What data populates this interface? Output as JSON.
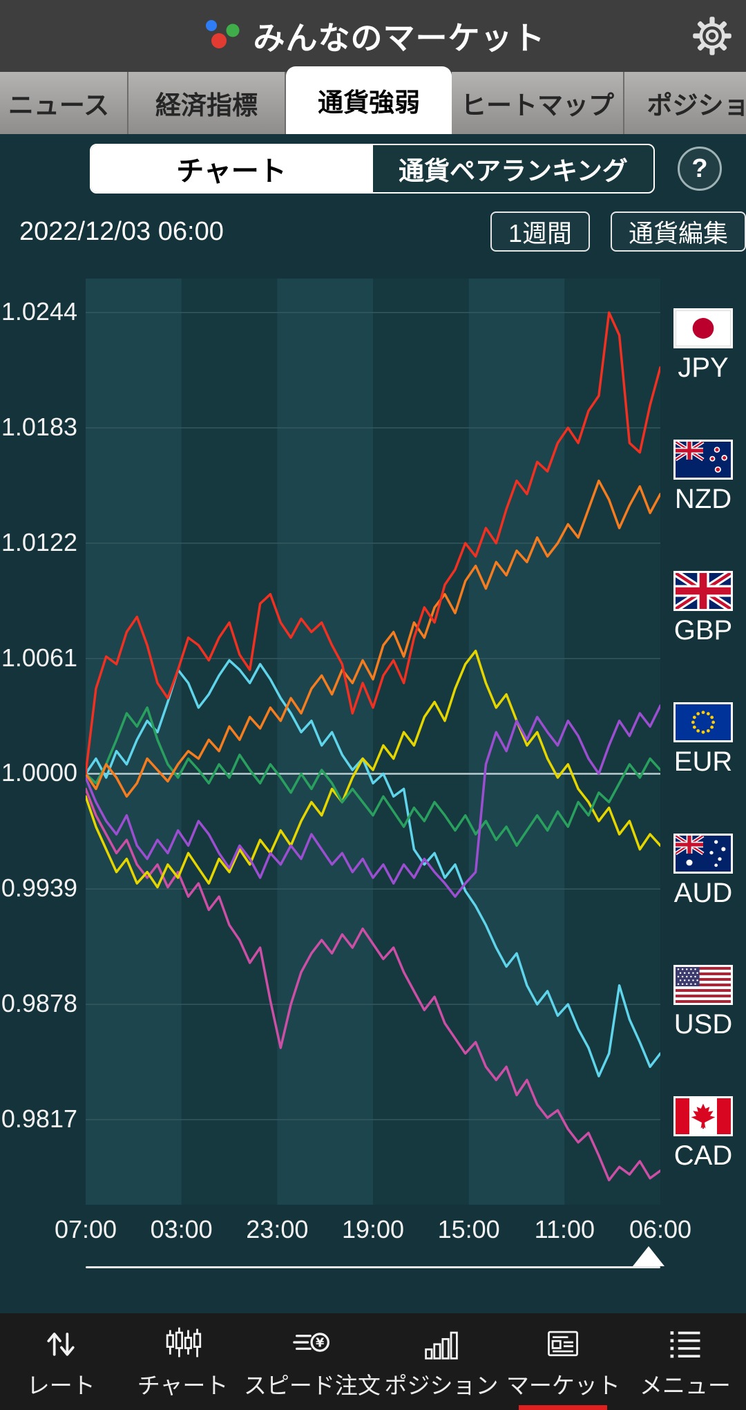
{
  "header": {
    "title": "みんなのマーケット"
  },
  "tabs": [
    {
      "id": "news",
      "label": "ニュース",
      "active": false
    },
    {
      "id": "indicators",
      "label": "経済指標",
      "active": false
    },
    {
      "id": "strength",
      "label": "通貨強弱",
      "active": true
    },
    {
      "id": "heatmap",
      "label": "ヒートマップ",
      "active": false
    },
    {
      "id": "positions",
      "label": "ポジション",
      "active": false
    }
  ],
  "subtabs": {
    "chart_label": "チャート",
    "ranking_label": "通貨ペアランキング",
    "help_label": "?"
  },
  "toolbar": {
    "datetime": "2022/12/03 06:00",
    "period": "1週間",
    "edit": "通貨編集"
  },
  "chart_data": {
    "type": "line",
    "x_ticks": [
      "07:00",
      "03:00",
      "23:00",
      "19:00",
      "15:00",
      "11:00",
      "06:00"
    ],
    "y_ticks": [
      "1.0244",
      "1.0183",
      "1.0122",
      "1.0061",
      "1.0000",
      "0.9939",
      "0.9878",
      "0.9817"
    ],
    "ylim": [
      0.9772,
      1.0262
    ],
    "baseline": 1.0,
    "grid": true,
    "legend_position": "right",
    "colors": {
      "band_light": "#1d454e",
      "band_dark": "#16393f",
      "grid": "#34585f",
      "baseline": "#b9cdd0"
    },
    "series": [
      {
        "name": "JPY",
        "color": "#f03122",
        "values": [
          1.0,
          1.0045,
          1.0062,
          1.0058,
          1.0075,
          1.0083,
          1.0068,
          1.0048,
          1.004,
          1.0055,
          1.0072,
          1.0068,
          1.006,
          1.0072,
          1.008,
          1.0063,
          1.0055,
          1.009,
          1.0095,
          1.008,
          1.0072,
          1.0082,
          1.0075,
          1.008,
          1.0068,
          1.0058,
          1.0032,
          1.0048,
          1.0035,
          1.0052,
          1.006,
          1.0048,
          1.0072,
          1.0088,
          1.008,
          1.01,
          1.0108,
          1.0122,
          1.0115,
          1.013,
          1.0122,
          1.014,
          1.0155,
          1.0148,
          1.0165,
          1.016,
          1.0175,
          1.0183,
          1.0175,
          1.0192,
          1.02,
          1.0244,
          1.0232,
          1.0175,
          1.017,
          1.0195,
          1.0215
        ]
      },
      {
        "name": "NZD",
        "color": "#f57d1f",
        "values": [
          1.0,
          0.9992,
          1.0005,
          0.9998,
          0.9988,
          0.9995,
          1.0008,
          1.0002,
          0.9996,
          1.0005,
          1.0012,
          1.0008,
          1.0018,
          1.0012,
          1.0025,
          1.0018,
          1.003,
          1.0024,
          1.0035,
          1.0028,
          1.004,
          1.0032,
          1.0045,
          1.0052,
          1.0042,
          1.0055,
          1.0048,
          1.006,
          1.005,
          1.0068,
          1.0075,
          1.0062,
          1.008,
          1.0072,
          1.0088,
          1.0095,
          1.0085,
          1.0102,
          1.011,
          1.0098,
          1.0112,
          1.0105,
          1.0118,
          1.0112,
          1.0125,
          1.0115,
          1.0122,
          1.0132,
          1.0125,
          1.014,
          1.0155,
          1.0145,
          1.013,
          1.0142,
          1.0152,
          1.0138,
          1.0148
        ]
      },
      {
        "name": "GBP",
        "color": "#9b4fd0",
        "values": [
          0.9998,
          0.9985,
          0.9975,
          0.9968,
          0.9978,
          0.9962,
          0.9955,
          0.9965,
          0.9958,
          0.997,
          0.9962,
          0.9975,
          0.9968,
          0.9958,
          0.995,
          0.9962,
          0.9955,
          0.9945,
          0.9958,
          0.9952,
          0.9962,
          0.9955,
          0.9968,
          0.996,
          0.9952,
          0.9958,
          0.9948,
          0.9955,
          0.9945,
          0.9952,
          0.9942,
          0.9952,
          0.9945,
          0.9955,
          0.9948,
          0.9942,
          0.9935,
          0.9942,
          0.9948,
          1.0005,
          1.0022,
          1.0012,
          1.0028,
          1.0018,
          1.003,
          1.0022,
          1.0015,
          1.0028,
          1.002,
          1.0008,
          1.0,
          1.0015,
          1.0028,
          1.002,
          1.0032,
          1.0025,
          1.0036
        ]
      },
      {
        "name": "EUR",
        "color": "#2aa05f",
        "values": [
          1.0,
          0.9995,
          1.0005,
          1.0018,
          1.0032,
          1.0025,
          1.0035,
          1.0018,
          1.0005,
          0.9998,
          1.0008,
          1.0002,
          0.9995,
          1.0005,
          0.9998,
          1.001,
          1.0002,
          0.9995,
          1.0005,
          0.9998,
          0.999,
          1.0,
          0.9992,
          1.0002,
          0.9995,
          0.9985,
          0.9992,
          0.9985,
          0.9978,
          0.9988,
          0.998,
          0.9972,
          0.9982,
          0.9975,
          0.9985,
          0.9978,
          0.997,
          0.9978,
          0.9968,
          0.9975,
          0.9965,
          0.9972,
          0.9962,
          0.997,
          0.9978,
          0.997,
          0.998,
          0.9972,
          0.9985,
          0.9978,
          0.999,
          0.9985,
          0.9995,
          1.0005,
          0.9998,
          1.0008,
          1.0002
        ]
      },
      {
        "name": "AUD",
        "color": "#e6d600",
        "values": [
          0.9988,
          0.9972,
          0.996,
          0.9948,
          0.9955,
          0.9942,
          0.9948,
          0.994,
          0.9952,
          0.9945,
          0.9958,
          0.995,
          0.9942,
          0.9955,
          0.9948,
          0.996,
          0.9952,
          0.9965,
          0.9958,
          0.997,
          0.9962,
          0.9975,
          0.9985,
          0.9978,
          0.9992,
          0.9985,
          0.9998,
          1.0008,
          1.0002,
          1.0015,
          1.0008,
          1.0022,
          1.0015,
          1.003,
          1.0038,
          1.0028,
          1.0045,
          1.0058,
          1.0065,
          1.0048,
          1.0035,
          1.0042,
          1.0028,
          1.0015,
          1.0022,
          1.0008,
          0.9998,
          1.0005,
          0.9992,
          0.9985,
          0.9975,
          0.9982,
          0.9968,
          0.9975,
          0.996,
          0.9968,
          0.9962
        ]
      },
      {
        "name": "USD",
        "color": "#5fd4ea",
        "values": [
          1.0,
          1.0008,
          0.9998,
          1.0012,
          1.0005,
          1.0018,
          1.0028,
          1.0022,
          1.0038,
          1.0055,
          1.0048,
          1.0035,
          1.0042,
          1.0052,
          1.006,
          1.0055,
          1.0048,
          1.0058,
          1.005,
          1.004,
          1.0032,
          1.0022,
          1.0028,
          1.0015,
          1.0022,
          1.001,
          1.0002,
          1.0008,
          0.9995,
          1.0,
          0.9988,
          0.9992,
          0.996,
          0.9952,
          0.9958,
          0.9945,
          0.9952,
          0.9938,
          0.993,
          0.992,
          0.9908,
          0.9898,
          0.9905,
          0.9888,
          0.9878,
          0.9885,
          0.9872,
          0.9878,
          0.9865,
          0.9855,
          0.984,
          0.9852,
          0.9888,
          0.987,
          0.9858,
          0.9845,
          0.9852
        ]
      },
      {
        "name": "CAD",
        "color": "#cc4fa6",
        "values": [
          0.9992,
          0.9978,
          0.9968,
          0.9958,
          0.9965,
          0.9952,
          0.9945,
          0.9952,
          0.994,
          0.9948,
          0.9935,
          0.9942,
          0.9928,
          0.9935,
          0.992,
          0.9912,
          0.99,
          0.9908,
          0.988,
          0.9855,
          0.9878,
          0.9895,
          0.9905,
          0.9912,
          0.9905,
          0.9915,
          0.9908,
          0.9918,
          0.991,
          0.9902,
          0.9908,
          0.9895,
          0.9885,
          0.9875,
          0.9882,
          0.9868,
          0.986,
          0.9852,
          0.9858,
          0.9845,
          0.9838,
          0.9845,
          0.983,
          0.9838,
          0.9825,
          0.9818,
          0.9822,
          0.9812,
          0.9805,
          0.981,
          0.9798,
          0.9785,
          0.9792,
          0.9788,
          0.9795,
          0.9786,
          0.979
        ]
      }
    ]
  },
  "legend": [
    {
      "code": "JPY",
      "flag": "jp"
    },
    {
      "code": "NZD",
      "flag": "nz"
    },
    {
      "code": "GBP",
      "flag": "gb"
    },
    {
      "code": "EUR",
      "flag": "eu"
    },
    {
      "code": "AUD",
      "flag": "au"
    },
    {
      "code": "USD",
      "flag": "us"
    },
    {
      "code": "CAD",
      "flag": "ca"
    }
  ],
  "nav": [
    {
      "id": "rate",
      "label": "レート",
      "icon": "rate-icon",
      "active": false
    },
    {
      "id": "chart",
      "label": "チャート",
      "icon": "candles-icon",
      "active": false
    },
    {
      "id": "speed-order",
      "label": "スピード注文",
      "icon": "speed-yen-icon",
      "active": false
    },
    {
      "id": "position",
      "label": "ポジション",
      "icon": "bars-icon",
      "active": false
    },
    {
      "id": "market",
      "label": "マーケット",
      "icon": "newspaper-icon",
      "active": true
    },
    {
      "id": "menu",
      "label": "メニュー",
      "icon": "menu-icon",
      "active": false
    }
  ]
}
